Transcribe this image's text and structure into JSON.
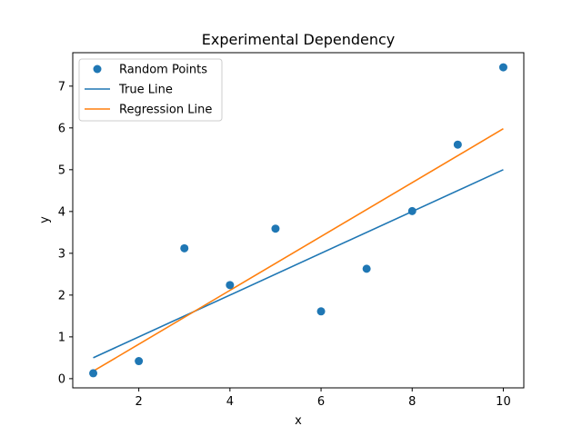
{
  "chart_data": {
    "type": "scatter",
    "title": "Experimental Dependency",
    "xlabel": "x",
    "ylabel": "y",
    "xlim": [
      0.55,
      10.45
    ],
    "ylim": [
      -0.22,
      7.8
    ],
    "xticks": [
      2,
      4,
      6,
      8,
      10
    ],
    "yticks": [
      0,
      1,
      2,
      3,
      4,
      5,
      6,
      7
    ],
    "grid": false,
    "legend": "top-left",
    "series": [
      {
        "name": "Random Points",
        "kind": "scatter",
        "color": "#1f77b4",
        "x": [
          1,
          2,
          3,
          4,
          5,
          6,
          7,
          8,
          9,
          10
        ],
        "y": [
          0.13,
          0.42,
          3.12,
          2.24,
          3.59,
          1.61,
          2.63,
          4.01,
          5.6,
          7.45
        ]
      },
      {
        "name": "True Line",
        "kind": "line",
        "color": "#1f77b4",
        "x": [
          1,
          10
        ],
        "y": [
          0.5,
          5.0
        ]
      },
      {
        "name": "Regression Line",
        "kind": "line",
        "color": "#ff7f0e",
        "x": [
          1,
          10
        ],
        "y": [
          0.18,
          5.98
        ]
      }
    ]
  }
}
